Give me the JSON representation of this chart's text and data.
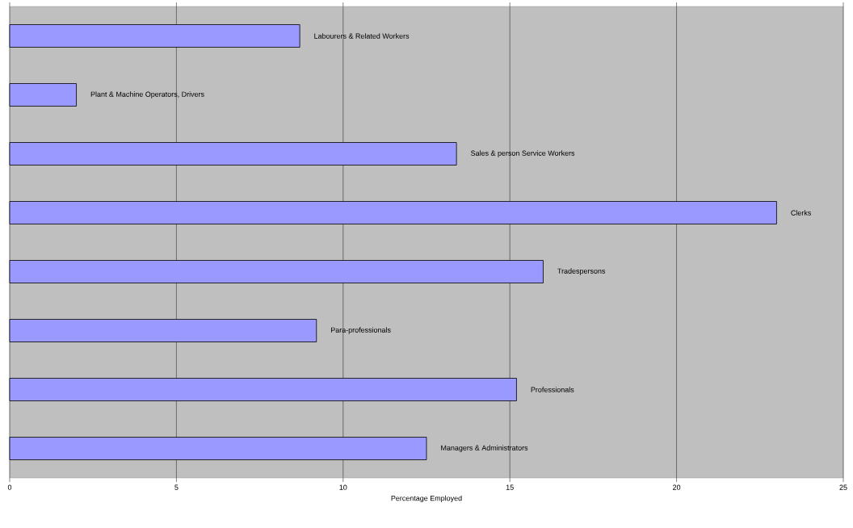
{
  "chart_data": {
    "type": "bar",
    "orientation": "horizontal",
    "xlabel": "Percentage Employed",
    "categories": [
      "Labourers & Related Workers",
      "Plant & Machine Operators, Drivers",
      "Sales & person Service Workers",
      "Clerks",
      "Tradespersons",
      "Para-professionals",
      "Professionals",
      "Managers & Administrators"
    ],
    "values": [
      8.7,
      2.0,
      13.4,
      23.0,
      16.0,
      9.2,
      15.2,
      12.5
    ],
    "color": "#9999ff",
    "xlim": [
      0,
      25
    ],
    "xticks": [
      0,
      5,
      10,
      15,
      20,
      25
    ],
    "grid": "x"
  }
}
